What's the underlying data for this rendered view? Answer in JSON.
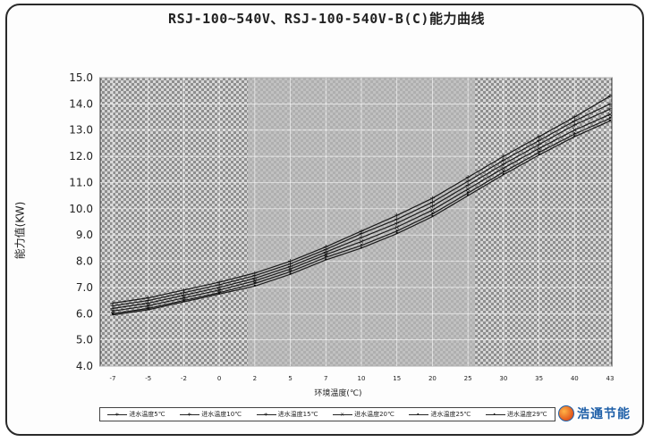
{
  "chart_data": {
    "type": "line",
    "title": "RSJ-100~540V、RSJ-100-540V-B(C)能力曲线",
    "xlabel": "环境温度(℃)",
    "ylabel": "能力值(KW)",
    "x": [
      -7,
      -5,
      -2,
      0,
      2,
      5,
      7,
      10,
      15,
      20,
      25,
      30,
      35,
      40,
      43
    ],
    "ylim": [
      4.0,
      15.0
    ],
    "yticks": [
      "4.0",
      "5.0",
      "6.0",
      "7.0",
      "8.0",
      "9.0",
      "10.0",
      "11.0",
      "12.0",
      "13.0",
      "14.0",
      "15.0"
    ],
    "xticks": [
      "-7",
      "-5",
      "-2",
      "0",
      "2",
      "5",
      "7",
      "10",
      "15",
      "20",
      "25",
      "30",
      "35",
      "40",
      "43"
    ],
    "grid": true,
    "legend_position": "bottom",
    "series": [
      {
        "name": "进水温度5℃",
        "marker": "+",
        "values": [
          6.4,
          6.6,
          6.9,
          7.2,
          7.55,
          8.0,
          8.55,
          9.15,
          9.75,
          10.4,
          11.2,
          12.0,
          12.75,
          13.5,
          14.3
        ]
      },
      {
        "name": "进水温度10℃",
        "marker": "+",
        "values": [
          6.3,
          6.5,
          6.8,
          7.1,
          7.45,
          7.9,
          8.45,
          9.05,
          9.6,
          10.25,
          11.05,
          11.85,
          12.6,
          13.35,
          14.0
        ]
      },
      {
        "name": "进水温度15℃",
        "marker": "+",
        "values": [
          6.2,
          6.4,
          6.7,
          7.0,
          7.35,
          7.8,
          8.35,
          8.9,
          9.45,
          10.1,
          10.9,
          11.7,
          12.45,
          13.2,
          13.8
        ]
      },
      {
        "name": "进水温度20℃",
        "marker": "×",
        "values": [
          6.1,
          6.3,
          6.6,
          6.9,
          7.25,
          7.7,
          8.25,
          8.75,
          9.3,
          9.95,
          10.75,
          11.55,
          12.3,
          13.0,
          13.6
        ]
      },
      {
        "name": "进水温度25℃",
        "marker": "•",
        "values": [
          6.0,
          6.2,
          6.5,
          6.8,
          7.15,
          7.6,
          8.15,
          8.6,
          9.15,
          9.8,
          10.6,
          11.4,
          12.15,
          12.85,
          13.45
        ]
      },
      {
        "name": "进水温度29℃",
        "marker": "•",
        "values": [
          5.95,
          6.15,
          6.45,
          6.75,
          7.05,
          7.5,
          8.05,
          8.5,
          9.05,
          9.7,
          10.5,
          11.3,
          12.05,
          12.75,
          13.35
        ]
      }
    ]
  },
  "logo": {
    "text": "浩通节能"
  }
}
